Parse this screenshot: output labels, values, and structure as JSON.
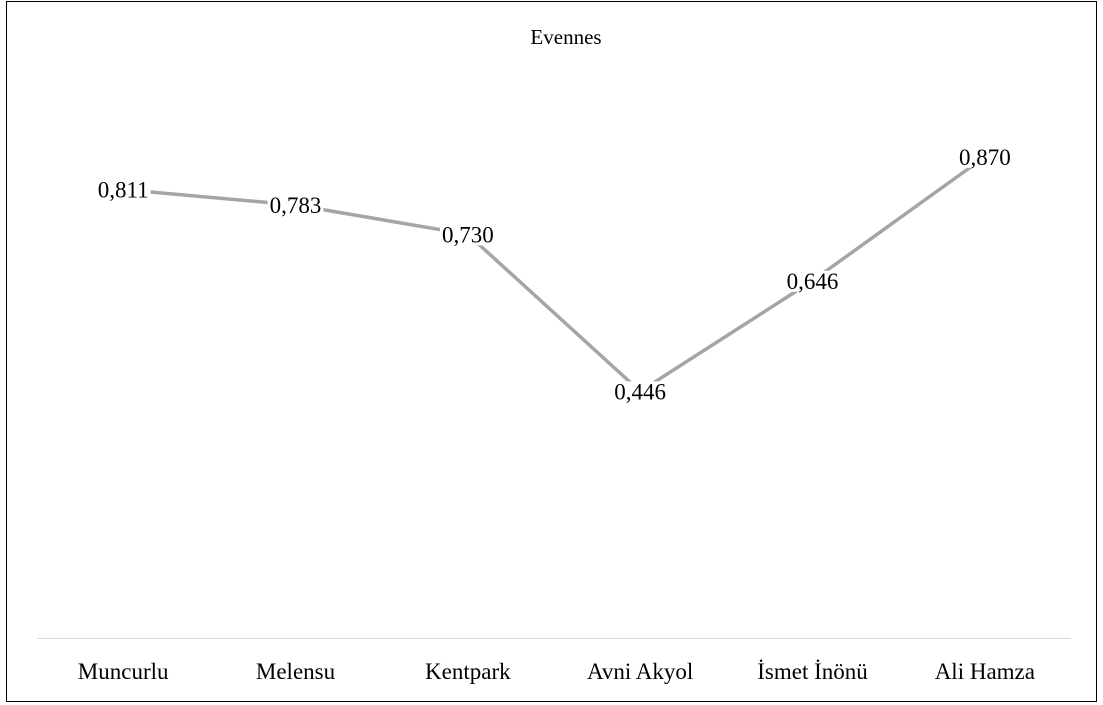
{
  "chart_data": {
    "type": "line",
    "title": "Evennes",
    "xlabel": "",
    "ylabel": "",
    "categories": [
      "Muncurlu",
      "Melensu",
      "Kentpark",
      "Avni Akyol",
      "İsmet İnönü",
      "Ali Hamza"
    ],
    "series": [
      {
        "values": [
          0.811,
          0.783,
          0.73,
          0.446,
          0.646,
          0.87
        ]
      }
    ],
    "data_labels": [
      "0,811",
      "0,783",
      "0,730",
      "0,446",
      "0,646",
      "0,870"
    ],
    "ylim": [
      0,
      1.0
    ],
    "grid": false,
    "legend": "none",
    "y_axis_visible": false,
    "line_color": "#a5a5a5",
    "axis_color": "#d9d9d9"
  }
}
